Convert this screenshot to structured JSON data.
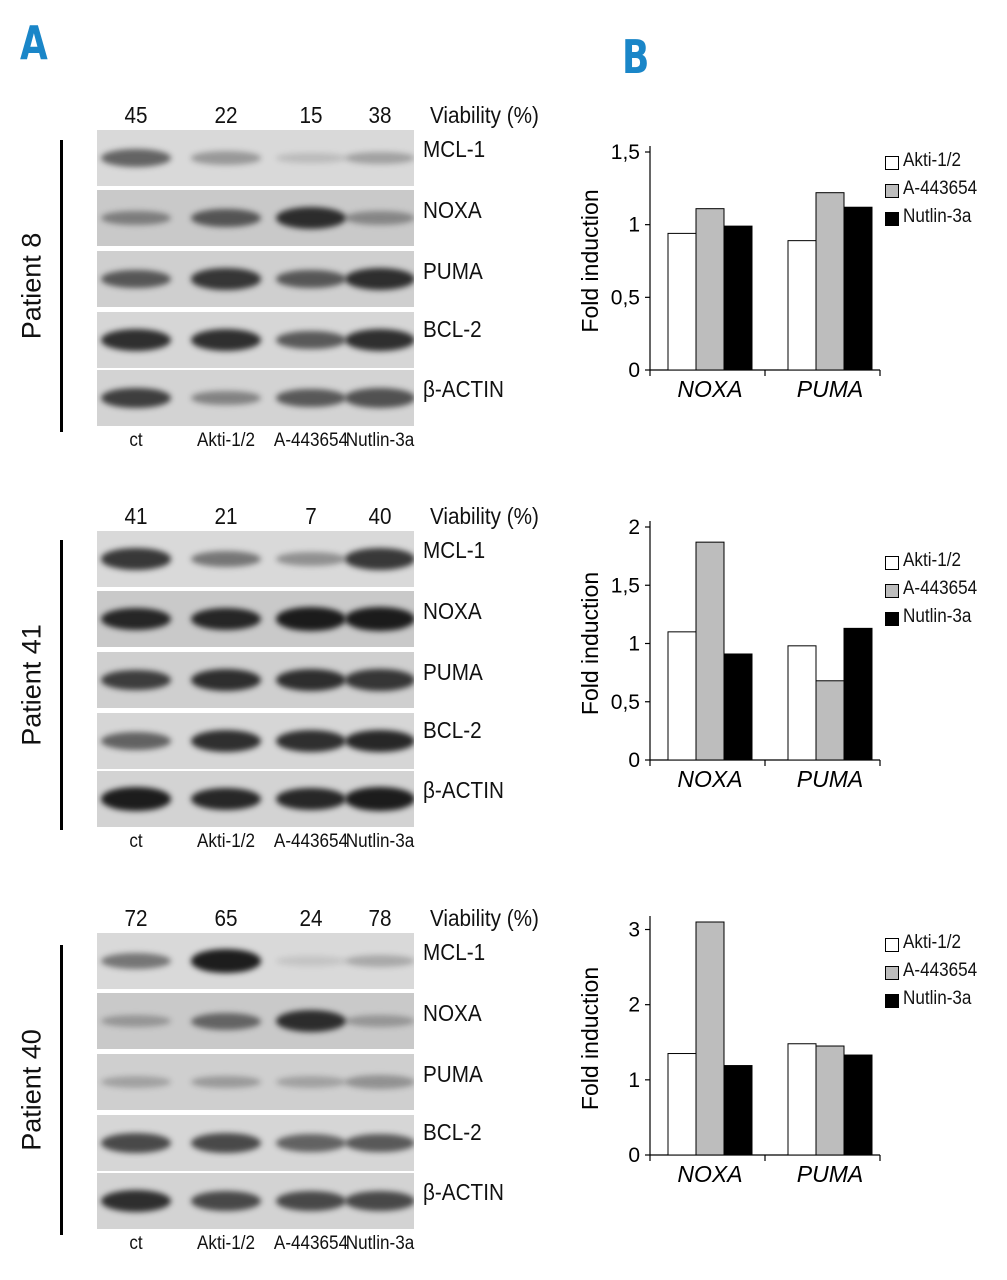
{
  "panel_labels": {
    "a": "A",
    "b": "B"
  },
  "viability_label": "Viability (%)",
  "lanes": [
    "ct",
    "Akti-1/2",
    "A-443654",
    "Nutlin-3a"
  ],
  "proteins": [
    "MCL-1",
    "NOXA",
    "PUMA",
    "BCL-2",
    "β-ACTIN"
  ],
  "patients": [
    {
      "name": "Patient 8",
      "viability": [
        "45",
        "22",
        "15",
        "38"
      ],
      "band_intensity": {
        "MCL-1": [
          0.55,
          0.25,
          0.05,
          0.2
        ],
        "NOXA": [
          0.35,
          0.6,
          0.85,
          0.3
        ],
        "PUMA": [
          0.6,
          0.8,
          0.6,
          0.85
        ],
        "BCL-2": [
          0.85,
          0.85,
          0.6,
          0.85
        ],
        "β-ACTIN": [
          0.75,
          0.35,
          0.6,
          0.65
        ]
      }
    },
    {
      "name": "Patient 41",
      "viability": [
        "41",
        "21",
        "7",
        "40"
      ],
      "band_intensity": {
        "MCL-1": [
          0.8,
          0.45,
          0.3,
          0.8
        ],
        "NOXA": [
          0.9,
          0.9,
          0.95,
          0.95
        ],
        "PUMA": [
          0.75,
          0.85,
          0.85,
          0.8
        ],
        "BCL-2": [
          0.55,
          0.85,
          0.85,
          0.9
        ],
        "β-ACTIN": [
          0.95,
          0.9,
          0.9,
          0.95
        ]
      }
    },
    {
      "name": "Patient 40",
      "viability": [
        "72",
        "65",
        "24",
        "78"
      ],
      "band_intensity": {
        "MCL-1": [
          0.45,
          0.95,
          0.0,
          0.15
        ],
        "NOXA": [
          0.2,
          0.5,
          0.85,
          0.2
        ],
        "PUMA": [
          0.15,
          0.2,
          0.15,
          0.25
        ],
        "BCL-2": [
          0.7,
          0.7,
          0.55,
          0.6
        ],
        "β-ACTIN": [
          0.85,
          0.7,
          0.7,
          0.7
        ]
      }
    }
  ],
  "legend": [
    {
      "label": "Akti-1/2",
      "color": "#ffffff"
    },
    {
      "label": "A-443654",
      "color": "#bdbdbd"
    },
    {
      "label": "Nutlin-3a",
      "color": "#000000"
    }
  ],
  "chart_data": [
    {
      "type": "bar",
      "ylabel": "Fold induction",
      "categories": [
        "NOXA",
        "PUMA"
      ],
      "ylim": [
        0,
        1.5
      ],
      "yticks": [
        "0",
        "0,5",
        "1",
        "1,5"
      ],
      "series": [
        {
          "name": "Akti-1/2",
          "values": [
            0.94,
            0.89
          ]
        },
        {
          "name": "A-443654",
          "values": [
            1.11,
            1.22
          ]
        },
        {
          "name": "Nutlin-3a",
          "values": [
            0.99,
            1.12
          ]
        }
      ]
    },
    {
      "type": "bar",
      "ylabel": "Fold induction",
      "categories": [
        "NOXA",
        "PUMA"
      ],
      "ylim": [
        0,
        2
      ],
      "yticks": [
        "0",
        "0,5",
        "1",
        "1,5",
        "2"
      ],
      "series": [
        {
          "name": "Akti-1/2",
          "values": [
            1.1,
            0.98
          ]
        },
        {
          "name": "A-443654",
          "values": [
            1.87,
            0.68
          ]
        },
        {
          "name": "Nutlin-3a",
          "values": [
            0.91,
            1.13
          ]
        }
      ]
    },
    {
      "type": "bar",
      "ylabel": "Fold induction",
      "categories": [
        "NOXA",
        "PUMA"
      ],
      "ylim": [
        0,
        3.1
      ],
      "yticks": [
        "0",
        "1",
        "2",
        "3"
      ],
      "series": [
        {
          "name": "Akti-1/2",
          "values": [
            1.35,
            1.48
          ]
        },
        {
          "name": "A-443654",
          "values": [
            3.1,
            1.45
          ]
        },
        {
          "name": "Nutlin-3a",
          "values": [
            1.19,
            1.33
          ]
        }
      ]
    }
  ]
}
